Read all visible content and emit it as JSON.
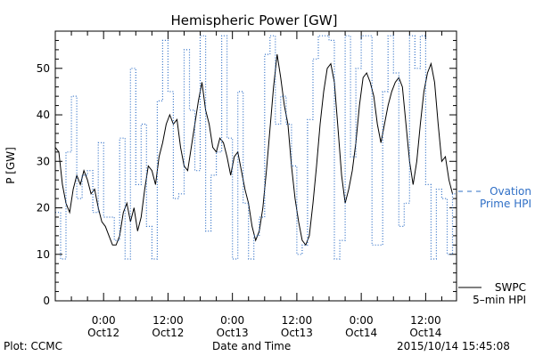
{
  "chart_data": {
    "type": "line",
    "title": "Hemispheric Power [GW]",
    "ylabel": "P [GW]",
    "xlabel": "Date and Time",
    "ylim": [
      0,
      58
    ],
    "yticks": [
      0,
      10,
      20,
      30,
      40,
      50
    ],
    "xlim": [
      "2015-10-11 15:00",
      "2015-10-14 17:45"
    ],
    "xticks": [
      {
        "time": "2015-10-12 00:00",
        "hour": "0:00",
        "day": "Oct12"
      },
      {
        "time": "2015-10-12 12:00",
        "hour": "12:00",
        "day": "Oct12"
      },
      {
        "time": "2015-10-13 00:00",
        "hour": "0:00",
        "day": "Oct13"
      },
      {
        "time": "2015-10-13 12:00",
        "hour": "12:00",
        "day": "Oct13"
      },
      {
        "time": "2015-10-14 00:00",
        "hour": "0:00",
        "day": "Oct14"
      },
      {
        "time": "2015-10-14 12:00",
        "hour": "12:00",
        "day": "Oct14"
      }
    ],
    "legend": [
      {
        "label": "Ovation Prime HPI",
        "label_lines": [
          "Ovation",
          "Prime HPI"
        ],
        "style": "dashed",
        "color": "#2f6fc6"
      },
      {
        "label": "SWPC 5-min HPI",
        "label_lines": [
          "SWPC",
          "5–min HPI"
        ],
        "style": "solid",
        "color": "#000000"
      }
    ],
    "series": [
      {
        "name": "SWPC 5-min HPI",
        "color": "#000000",
        "style": "solid",
        "points": [
          [
            "2015-10-11 15:00",
            33
          ],
          [
            "2015-10-11 15:40",
            32
          ],
          [
            "2015-10-11 16:20",
            25
          ],
          [
            "2015-10-11 17:00",
            21
          ],
          [
            "2015-10-11 17:40",
            19
          ],
          [
            "2015-10-11 18:20",
            24
          ],
          [
            "2015-10-11 19:00",
            27
          ],
          [
            "2015-10-11 19:40",
            25
          ],
          [
            "2015-10-11 20:20",
            28
          ],
          [
            "2015-10-11 21:00",
            26
          ],
          [
            "2015-10-11 21:40",
            23
          ],
          [
            "2015-10-11 22:20",
            24
          ],
          [
            "2015-10-11 23:00",
            20
          ],
          [
            "2015-10-11 23:40",
            17
          ],
          [
            "2015-10-12 00:20",
            16
          ],
          [
            "2015-10-12 01:00",
            14
          ],
          [
            "2015-10-12 01:40",
            12
          ],
          [
            "2015-10-12 02:20",
            12
          ],
          [
            "2015-10-12 03:00",
            14
          ],
          [
            "2015-10-12 03:40",
            19
          ],
          [
            "2015-10-12 04:20",
            21
          ],
          [
            "2015-10-12 05:00",
            17
          ],
          [
            "2015-10-12 05:40",
            20
          ],
          [
            "2015-10-12 06:20",
            15
          ],
          [
            "2015-10-12 07:00",
            18
          ],
          [
            "2015-10-12 07:40",
            24
          ],
          [
            "2015-10-12 08:20",
            29
          ],
          [
            "2015-10-12 09:00",
            28
          ],
          [
            "2015-10-12 09:40",
            25
          ],
          [
            "2015-10-12 10:20",
            31
          ],
          [
            "2015-10-12 11:00",
            34
          ],
          [
            "2015-10-12 11:40",
            38
          ],
          [
            "2015-10-12 12:20",
            40
          ],
          [
            "2015-10-12 13:00",
            38
          ],
          [
            "2015-10-12 13:40",
            39
          ],
          [
            "2015-10-12 14:20",
            33
          ],
          [
            "2015-10-12 15:00",
            29
          ],
          [
            "2015-10-12 15:40",
            28
          ],
          [
            "2015-10-12 16:20",
            33
          ],
          [
            "2015-10-12 17:00",
            38
          ],
          [
            "2015-10-12 17:40",
            43
          ],
          [
            "2015-10-12 18:20",
            47
          ],
          [
            "2015-10-12 19:00",
            41
          ],
          [
            "2015-10-12 19:40",
            38
          ],
          [
            "2015-10-12 20:20",
            33
          ],
          [
            "2015-10-12 21:00",
            32
          ],
          [
            "2015-10-12 21:40",
            35
          ],
          [
            "2015-10-12 22:20",
            34
          ],
          [
            "2015-10-12 23:00",
            31
          ],
          [
            "2015-10-12 23:40",
            27
          ],
          [
            "2015-10-13 00:20",
            31
          ],
          [
            "2015-10-13 01:00",
            32
          ],
          [
            "2015-10-13 01:40",
            28
          ],
          [
            "2015-10-13 02:20",
            24
          ],
          [
            "2015-10-13 03:00",
            21
          ],
          [
            "2015-10-13 03:40",
            16
          ],
          [
            "2015-10-13 04:20",
            13
          ],
          [
            "2015-10-13 05:00",
            15
          ],
          [
            "2015-10-13 05:40",
            20
          ],
          [
            "2015-10-13 06:20",
            28
          ],
          [
            "2015-10-13 07:00",
            37
          ],
          [
            "2015-10-13 07:40",
            46
          ],
          [
            "2015-10-13 08:20",
            53
          ],
          [
            "2015-10-13 09:00",
            48
          ],
          [
            "2015-10-13 09:40",
            42
          ],
          [
            "2015-10-13 10:20",
            38
          ],
          [
            "2015-10-13 11:00",
            29
          ],
          [
            "2015-10-13 11:40",
            22
          ],
          [
            "2015-10-13 12:20",
            17
          ],
          [
            "2015-10-13 13:00",
            13
          ],
          [
            "2015-10-13 13:40",
            12
          ],
          [
            "2015-10-13 14:20",
            14
          ],
          [
            "2015-10-13 15:00",
            21
          ],
          [
            "2015-10-13 15:40",
            29
          ],
          [
            "2015-10-13 16:20",
            38
          ],
          [
            "2015-10-13 17:00",
            45
          ],
          [
            "2015-10-13 17:40",
            50
          ],
          [
            "2015-10-13 18:20",
            51
          ],
          [
            "2015-10-13 19:00",
            47
          ],
          [
            "2015-10-13 19:40",
            37
          ],
          [
            "2015-10-13 20:20",
            27
          ],
          [
            "2015-10-13 21:00",
            21
          ],
          [
            "2015-10-13 21:40",
            24
          ],
          [
            "2015-10-13 22:20",
            28
          ],
          [
            "2015-10-13 23:00",
            34
          ],
          [
            "2015-10-13 23:40",
            42
          ],
          [
            "2015-10-14 00:20",
            48
          ],
          [
            "2015-10-14 01:00",
            49
          ],
          [
            "2015-10-14 01:40",
            47
          ],
          [
            "2015-10-14 02:20",
            44
          ],
          [
            "2015-10-14 03:00",
            38
          ],
          [
            "2015-10-14 03:40",
            34
          ],
          [
            "2015-10-14 04:20",
            38
          ],
          [
            "2015-10-14 05:00",
            42
          ],
          [
            "2015-10-14 05:40",
            45
          ],
          [
            "2015-10-14 06:20",
            47
          ],
          [
            "2015-10-14 07:00",
            48
          ],
          [
            "2015-10-14 07:40",
            46
          ],
          [
            "2015-10-14 08:20",
            38
          ],
          [
            "2015-10-14 09:00",
            30
          ],
          [
            "2015-10-14 09:40",
            25
          ],
          [
            "2015-10-14 10:20",
            30
          ],
          [
            "2015-10-14 11:00",
            38
          ],
          [
            "2015-10-14 11:40",
            45
          ],
          [
            "2015-10-14 12:20",
            49
          ],
          [
            "2015-10-14 13:00",
            51
          ],
          [
            "2015-10-14 13:40",
            47
          ],
          [
            "2015-10-14 14:20",
            38
          ],
          [
            "2015-10-14 15:00",
            30
          ],
          [
            "2015-10-14 15:40",
            31
          ],
          [
            "2015-10-14 16:20",
            26
          ],
          [
            "2015-10-14 17:00",
            23
          ]
        ]
      },
      {
        "name": "Ovation Prime HPI",
        "color": "#2f6fc6",
        "style": "dotted-step",
        "points": [
          [
            "2015-10-11 15:00",
            19
          ],
          [
            "2015-10-11 16:00",
            9
          ],
          [
            "2015-10-11 17:00",
            32
          ],
          [
            "2015-10-11 18:00",
            44
          ],
          [
            "2015-10-11 19:00",
            22
          ],
          [
            "2015-10-11 20:00",
            27
          ],
          [
            "2015-10-11 21:00",
            28
          ],
          [
            "2015-10-11 22:00",
            19
          ],
          [
            "2015-10-11 23:00",
            34
          ],
          [
            "2015-10-12 00:00",
            18
          ],
          [
            "2015-10-12 01:00",
            18
          ],
          [
            "2015-10-12 02:00",
            13
          ],
          [
            "2015-10-12 03:00",
            35
          ],
          [
            "2015-10-12 04:00",
            9
          ],
          [
            "2015-10-12 05:00",
            50
          ],
          [
            "2015-10-12 06:00",
            25
          ],
          [
            "2015-10-12 07:00",
            38
          ],
          [
            "2015-10-12 08:00",
            16
          ],
          [
            "2015-10-12 09:00",
            9
          ],
          [
            "2015-10-12 10:00",
            43
          ],
          [
            "2015-10-12 11:00",
            56
          ],
          [
            "2015-10-12 12:00",
            45
          ],
          [
            "2015-10-12 13:00",
            22
          ],
          [
            "2015-10-12 14:00",
            23
          ],
          [
            "2015-10-12 15:00",
            54
          ],
          [
            "2015-10-12 16:00",
            41
          ],
          [
            "2015-10-12 17:00",
            28
          ],
          [
            "2015-10-12 18:00",
            57
          ],
          [
            "2015-10-12 19:00",
            15
          ],
          [
            "2015-10-12 20:00",
            27
          ],
          [
            "2015-10-12 21:00",
            32
          ],
          [
            "2015-10-12 22:00",
            57
          ],
          [
            "2015-10-12 23:00",
            35
          ],
          [
            "2015-10-13 00:00",
            9
          ],
          [
            "2015-10-13 01:00",
            45
          ],
          [
            "2015-10-13 02:00",
            21
          ],
          [
            "2015-10-13 03:00",
            9
          ],
          [
            "2015-10-13 04:00",
            14
          ],
          [
            "2015-10-13 05:00",
            18
          ],
          [
            "2015-10-13 06:00",
            53
          ],
          [
            "2015-10-13 07:00",
            57
          ],
          [
            "2015-10-13 08:00",
            38
          ],
          [
            "2015-10-13 09:00",
            44
          ],
          [
            "2015-10-13 10:00",
            38
          ],
          [
            "2015-10-13 11:00",
            29
          ],
          [
            "2015-10-13 12:00",
            10
          ],
          [
            "2015-10-13 13:00",
            12
          ],
          [
            "2015-10-13 14:00",
            39
          ],
          [
            "2015-10-13 15:00",
            52
          ],
          [
            "2015-10-13 16:00",
            57
          ],
          [
            "2015-10-13 17:00",
            57
          ],
          [
            "2015-10-13 18:00",
            56
          ],
          [
            "2015-10-13 19:00",
            9
          ],
          [
            "2015-10-13 20:00",
            13
          ],
          [
            "2015-10-13 21:00",
            57
          ],
          [
            "2015-10-13 22:00",
            31
          ],
          [
            "2015-10-13 23:00",
            50
          ],
          [
            "2015-10-14 00:00",
            57
          ],
          [
            "2015-10-14 01:00",
            57
          ],
          [
            "2015-10-14 02:00",
            12
          ],
          [
            "2015-10-14 03:00",
            12
          ],
          [
            "2015-10-14 04:00",
            45
          ],
          [
            "2015-10-14 05:00",
            57
          ],
          [
            "2015-10-14 06:00",
            49
          ],
          [
            "2015-10-14 07:00",
            16
          ],
          [
            "2015-10-14 08:00",
            21
          ],
          [
            "2015-10-14 09:00",
            57
          ],
          [
            "2015-10-14 10:00",
            50
          ],
          [
            "2015-10-14 11:00",
            57
          ],
          [
            "2015-10-14 12:00",
            25
          ],
          [
            "2015-10-14 13:00",
            9
          ],
          [
            "2015-10-14 14:00",
            24
          ],
          [
            "2015-10-14 15:00",
            22
          ],
          [
            "2015-10-14 16:00",
            10
          ],
          [
            "2015-10-14 17:00",
            23
          ]
        ]
      }
    ]
  },
  "footer": {
    "left": "Plot: CCMC",
    "center": "Date and Time",
    "right": "2015/10/14 15:45:08"
  }
}
